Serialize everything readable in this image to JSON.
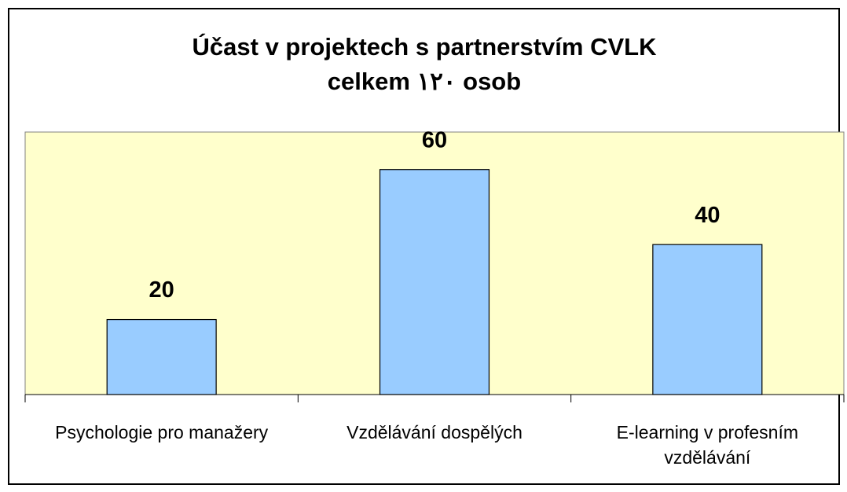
{
  "chart_data": {
    "type": "bar",
    "title": [
      "Účast v projektech s partnerstvím CVLK",
      "celkem ١٢٠ osob"
    ],
    "categories": [
      "Psychologie pro manažery",
      "Vzdělávání dospělých",
      "E-learning v profesním vzdělávání"
    ],
    "values": [
      20,
      60,
      40
    ],
    "color": "#99ccff",
    "ylim": [
      0,
      70
    ],
    "grid": false
  }
}
